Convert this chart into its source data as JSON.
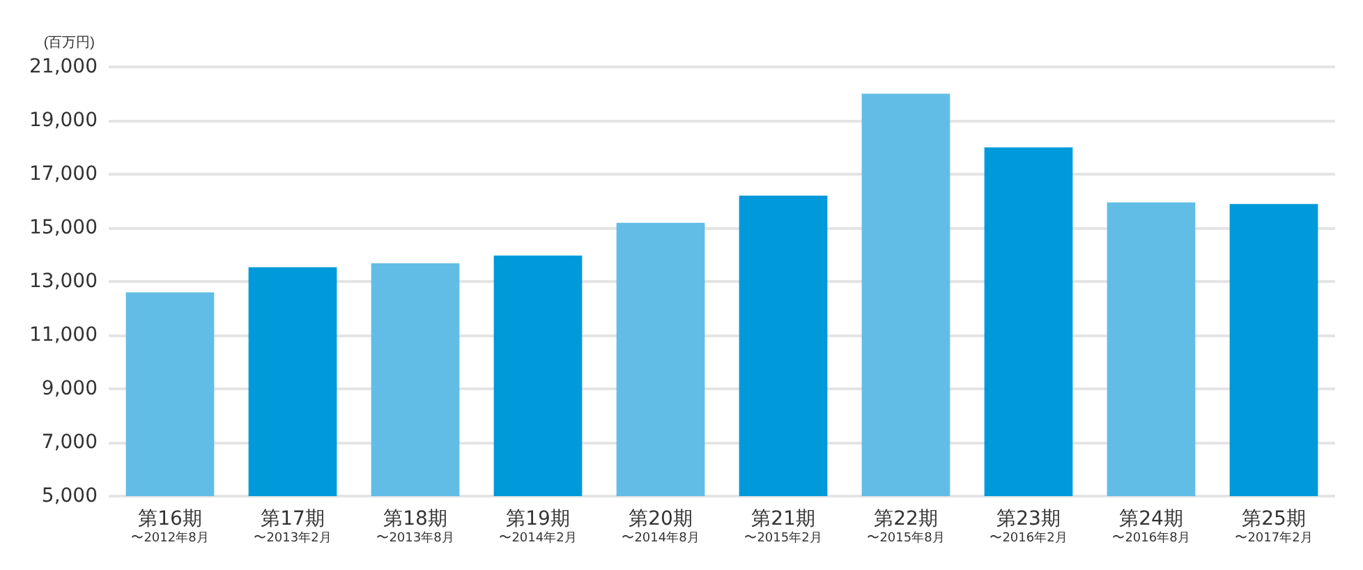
{
  "chart_data": {
    "type": "bar",
    "ylabel": "(百万円)",
    "categories": [
      "第16期〜2012年8月",
      "第17期〜2013年2月",
      "第18期〜2013年8月",
      "第19期〜2014年2月",
      "第20期〜2014年8月",
      "第21期〜2015年2月",
      "第22期〜2015年8月",
      "第23期〜2016年2月",
      "第24期〜2016年8月",
      "第25期〜2017年2月"
    ],
    "values": [
      12600,
      13530,
      13680,
      13970,
      15190,
      16200,
      20000,
      18000,
      15950,
      15890
    ],
    "colors": [
      "#62bde6",
      "#0099d9",
      "#62bde6",
      "#0099d9",
      "#62bde6",
      "#0099d9",
      "#62bde6",
      "#0099d9",
      "#62bde6",
      "#0099d9"
    ],
    "ylim": [
      5000,
      21000
    ],
    "yticks": [
      {
        "value": 5000,
        "label": "5,000"
      },
      {
        "value": 7000,
        "label": "7,000"
      },
      {
        "value": 9000,
        "label": "9,000"
      },
      {
        "value": 11000,
        "label": "11,000"
      },
      {
        "value": 13000,
        "label": "13,000"
      },
      {
        "value": 15000,
        "label": "15,000"
      },
      {
        "value": 17000,
        "label": "17,000"
      },
      {
        "value": 19000,
        "label": "19,000"
      },
      {
        "value": 21000,
        "label": "21,000"
      }
    ],
    "grid": "y"
  }
}
